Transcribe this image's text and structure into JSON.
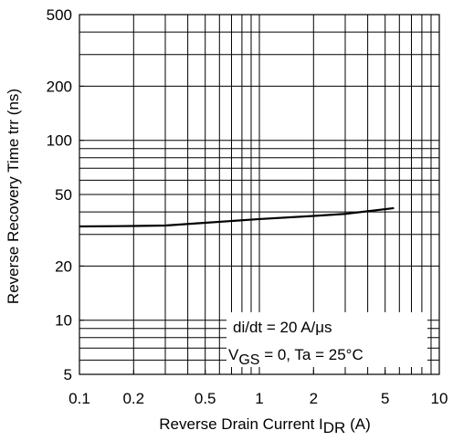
{
  "chart_data": {
    "type": "line",
    "xlabel": {
      "main": "Reverse Drain Current   I",
      "sub": "DR",
      "unit": "  (A)"
    },
    "ylabel": "Reverse Recovery Time   trr   (ns)",
    "log_x": true,
    "log_y": true,
    "grid": true,
    "xlim": [
      0.1,
      10
    ],
    "ylim": [
      5,
      500
    ],
    "xticks": [
      0.1,
      0.2,
      0.5,
      1,
      2,
      5,
      10
    ],
    "yticks": [
      5,
      10,
      20,
      50,
      100,
      200,
      500
    ],
    "xgrid": [
      0.2,
      0.3,
      0.4,
      0.5,
      0.6,
      0.7,
      0.8,
      0.9,
      1,
      2,
      3,
      4,
      5,
      6,
      7,
      8,
      9
    ],
    "ygrid": [
      6,
      7,
      8,
      9,
      10,
      20,
      30,
      40,
      50,
      60,
      70,
      80,
      90,
      100,
      200,
      300,
      400
    ],
    "annotations": {
      "line1": "di/dt = 20 A/μs",
      "line2_main": "V",
      "line2_sub": "GS",
      "line2_rest": " = 0,  Ta = 25°C"
    },
    "series": [
      {
        "color": "#000000",
        "x": [
          0.1,
          0.2,
          0.3,
          0.5,
          1,
          2,
          3,
          5.6
        ],
        "values": [
          33.2,
          33.4,
          33.6,
          34.8,
          36.5,
          38,
          39,
          42
        ]
      }
    ]
  }
}
